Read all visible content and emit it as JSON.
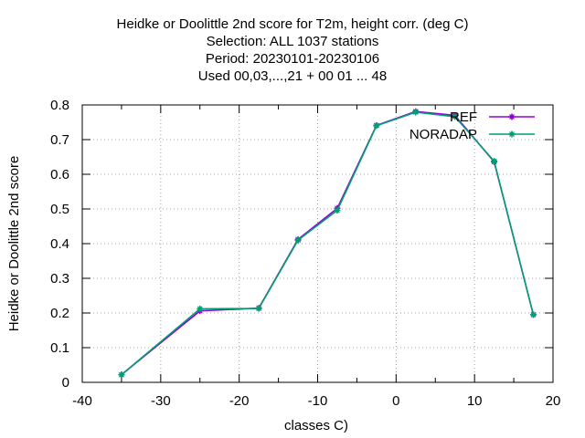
{
  "chart_data": {
    "type": "line",
    "title_lines": [
      "Heidke or Doolittle 2nd score  for T2m, height corr. (deg C)",
      "Selection: ALL   1037 stations",
      "Period: 20230101-20230106",
      "Used  00,03,...,21  + 00 01 ... 48"
    ],
    "xlabel": "classes C)",
    "ylabel": "Heidke or Doolittle 2nd score",
    "xlim": [
      -40,
      20
    ],
    "ylim": [
      0,
      0.8
    ],
    "xticks": [
      -40,
      -30,
      -20,
      -10,
      0,
      10,
      20
    ],
    "yticks": [
      0,
      0.1,
      0.2,
      0.3,
      0.4,
      0.5,
      0.6,
      0.7,
      0.8
    ],
    "xtick_labels": [
      "-40",
      "-30",
      "-20",
      "-10",
      "0",
      "10",
      "20"
    ],
    "ytick_labels": [
      "0",
      "0.1",
      "0.2",
      "0.3",
      "0.4",
      "0.5",
      "0.6",
      "0.7",
      "0.8"
    ],
    "grid": true,
    "legend_position": "top-right",
    "series": [
      {
        "name": "REF",
        "color": "#9400d3",
        "x": [
          -35,
          -25,
          -17.5,
          -12.5,
          -7.5,
          -2.5,
          2.5,
          7.5,
          12.5,
          17.5
        ],
        "y": [
          0.022,
          0.206,
          0.214,
          0.412,
          0.502,
          0.741,
          0.781,
          0.77,
          0.636,
          0.195
        ]
      },
      {
        "name": "NORADAP",
        "color": "#009e73",
        "x": [
          -35,
          -25,
          -17.5,
          -12.5,
          -7.5,
          -2.5,
          2.5,
          7.5,
          12.5,
          17.5
        ],
        "y": [
          0.022,
          0.212,
          0.213,
          0.41,
          0.496,
          0.74,
          0.779,
          0.766,
          0.638,
          0.195
        ]
      }
    ]
  }
}
